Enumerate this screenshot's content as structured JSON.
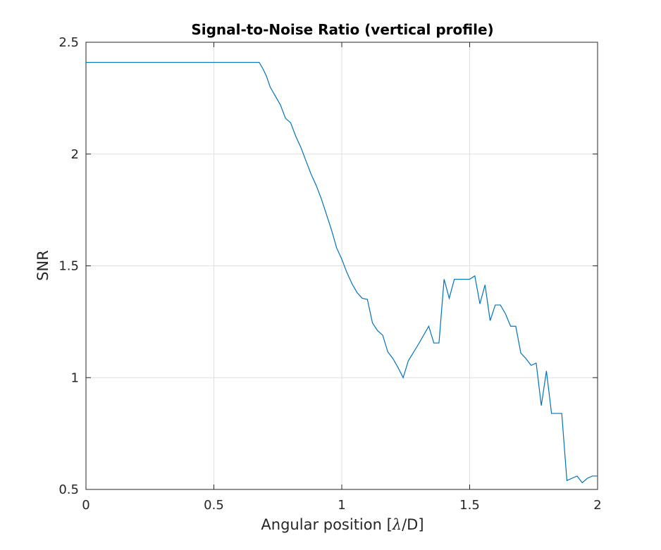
{
  "chart_data": {
    "type": "line",
    "title": "Signal-to-Noise Ratio (vertical profile)",
    "xlabel_prefix": "Angular position [",
    "xlabel_symbol": "λ",
    "xlabel_suffix": "/D]",
    "ylabel": "SNR",
    "xlim": [
      0,
      2
    ],
    "ylim": [
      0.5,
      2.5
    ],
    "xticks": [
      0,
      0.5,
      1,
      1.5,
      2
    ],
    "xtick_labels": [
      "0",
      "0.5",
      "1",
      "1.5",
      "2"
    ],
    "yticks": [
      0.5,
      1,
      1.5,
      2,
      2.5
    ],
    "ytick_labels": [
      "0.5",
      "1",
      "1.5",
      "2",
      "2.5"
    ],
    "grid": true,
    "line_color": "#0072BD",
    "grid_color": "#DFDFDF",
    "axis_color": "#262626",
    "series": [
      {
        "x": [
          0,
          0.677,
          0.69,
          0.705,
          0.72,
          0.74,
          0.76,
          0.78,
          0.8,
          0.82,
          0.84,
          0.86,
          0.88,
          0.9,
          0.92,
          0.94,
          0.96,
          0.98,
          1.0,
          1.02,
          1.04,
          1.06,
          1.08,
          1.1,
          1.12,
          1.14,
          1.16,
          1.18,
          1.2,
          1.22,
          1.24,
          1.26,
          1.3,
          1.34,
          1.36,
          1.38,
          1.4,
          1.42,
          1.44,
          1.46,
          1.48,
          1.5,
          1.52,
          1.54,
          1.56,
          1.58,
          1.6,
          1.62,
          1.64,
          1.66,
          1.68,
          1.7,
          1.72,
          1.74,
          1.76,
          1.78,
          1.8,
          1.82,
          1.84,
          1.86,
          1.88,
          1.9,
          1.92,
          1.94,
          1.96,
          1.98,
          2.0
        ],
        "y": [
          2.41,
          2.41,
          2.385,
          2.35,
          2.3,
          2.26,
          2.22,
          2.16,
          2.14,
          2.08,
          2.03,
          1.97,
          1.91,
          1.86,
          1.8,
          1.73,
          1.66,
          1.58,
          1.53,
          1.47,
          1.42,
          1.38,
          1.355,
          1.35,
          1.245,
          1.21,
          1.19,
          1.115,
          1.085,
          1.045,
          1.0,
          1.075,
          1.15,
          1.23,
          1.155,
          1.155,
          1.44,
          1.355,
          1.44,
          1.44,
          1.44,
          1.44,
          1.455,
          1.33,
          1.415,
          1.255,
          1.325,
          1.325,
          1.285,
          1.23,
          1.23,
          1.11,
          1.085,
          1.055,
          1.065,
          0.875,
          1.03,
          0.84,
          0.84,
          0.84,
          0.54,
          0.55,
          0.56,
          0.53,
          0.55,
          0.56,
          0.56
        ]
      }
    ]
  }
}
